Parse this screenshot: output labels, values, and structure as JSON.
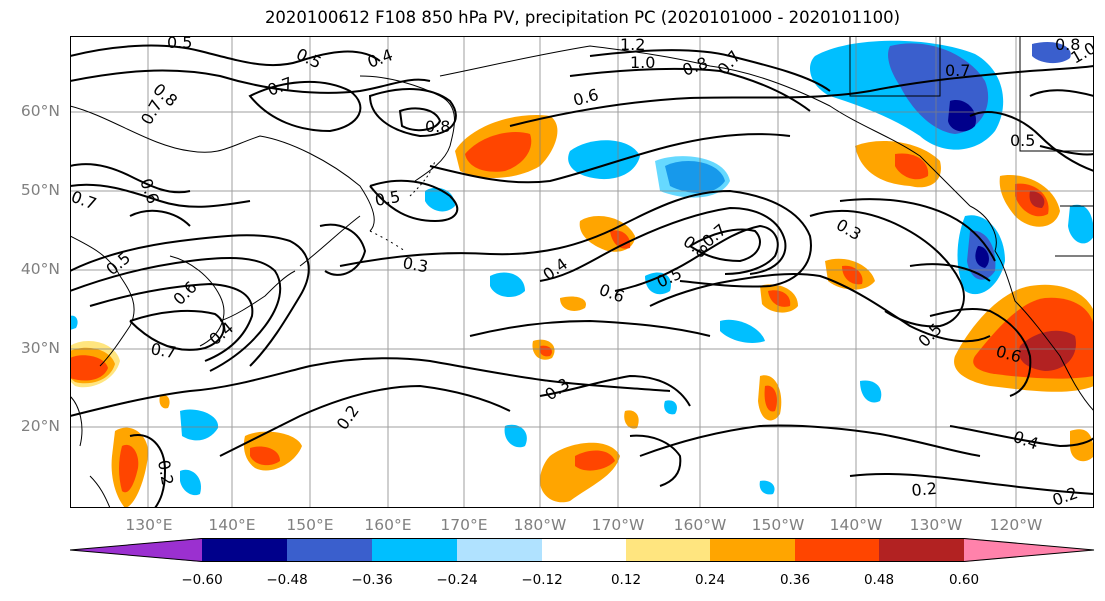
{
  "title": "2020100612 F108 850 hPa PV, precipitation PC (2020101000 - 2020101100)",
  "lat_labels": [
    "60°N",
    "50°N",
    "40°N",
    "30°N",
    "20°N"
  ],
  "lon_labels": [
    "130°E",
    "140°E",
    "150°E",
    "160°E",
    "170°E",
    "180°W",
    "170°W",
    "160°W",
    "150°W",
    "140°W",
    "130°W",
    "120°W"
  ],
  "colorbar": {
    "tick_labels": [
      "−0.60",
      "−0.48",
      "−0.36",
      "−0.24",
      "−0.12",
      "0.12",
      "0.24",
      "0.36",
      "0.48",
      "0.60"
    ],
    "colors": [
      "#9b30d0",
      "#00008b",
      "#3a5fcd",
      "#00bfff",
      "#b0e2ff",
      "#ffffff",
      "#ffe57f",
      "#ffa500",
      "#ff4500",
      "#b22222",
      "#ff82ab"
    ]
  },
  "contour_labels": [
    "0.5",
    "0.5",
    "0.4",
    "1.2",
    "1.0",
    "0.8",
    "0.7",
    "0.8",
    "0.7",
    "0.8",
    "1.0",
    "0.7",
    "0.7",
    "0.8",
    "0.6",
    "0.5",
    "0.6",
    "0.7",
    "0.5",
    "0.3",
    "0.4",
    "0.6",
    "0.5",
    "0.8",
    "0.7",
    "0.3",
    "0.5",
    "0.6",
    "0.6",
    "0.5",
    "0.7",
    "0.4",
    "0.3",
    "0.2",
    "0.2",
    "0.4",
    "0.2",
    "0.2"
  ]
}
